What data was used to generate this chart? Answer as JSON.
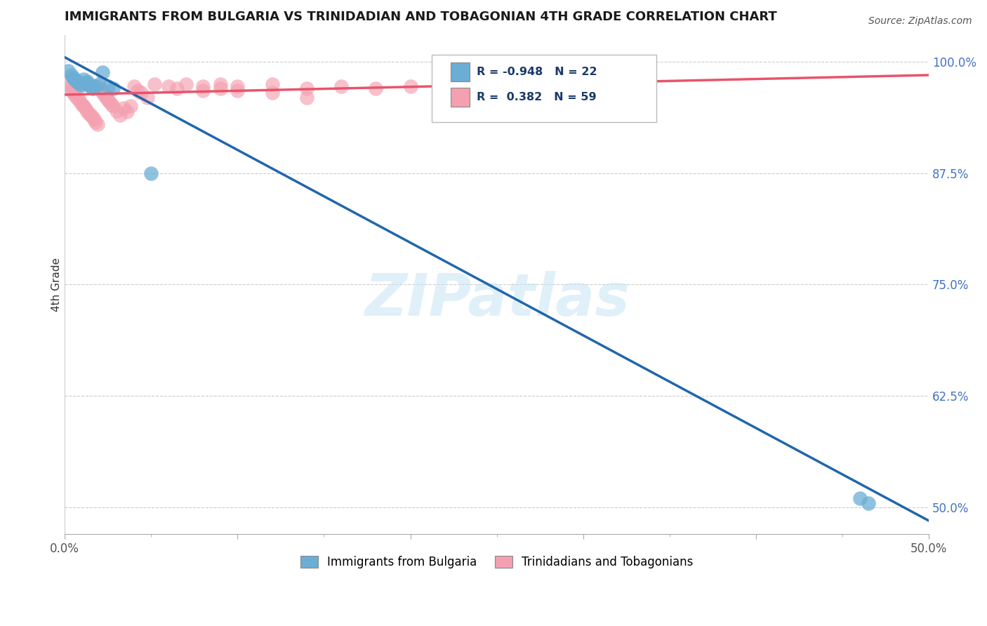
{
  "title": "IMMIGRANTS FROM BULGARIA VS TRINIDADIAN AND TOBAGONIAN 4TH GRADE CORRELATION CHART",
  "source": "Source: ZipAtlas.com",
  "ylabel": "4th Grade",
  "ytick_labels": [
    "100.0%",
    "87.5%",
    "75.0%",
    "62.5%",
    "50.0%"
  ],
  "ytick_values": [
    1.0,
    0.875,
    0.75,
    0.625,
    0.5
  ],
  "xlim": [
    0.0,
    0.5
  ],
  "ylim": [
    0.47,
    1.03
  ],
  "blue_R": -0.948,
  "blue_N": 22,
  "pink_R": 0.382,
  "pink_N": 59,
  "blue_color": "#6aaed6",
  "pink_color": "#f4a0b0",
  "blue_line_color": "#2166ac",
  "pink_line_color": "#e8546a",
  "watermark": "ZIPatlas",
  "legend_label_blue": "Immigrants from Bulgaria",
  "legend_label_pink": "Trinidadians and Tobagonians",
  "blue_line_x0": 0.0,
  "blue_line_y0": 1.005,
  "blue_line_x1": 0.5,
  "blue_line_y1": 0.485,
  "pink_line_x0": 0.0,
  "pink_line_y0": 0.963,
  "pink_line_x1": 0.5,
  "pink_line_y1": 0.985,
  "blue_scatter_x": [
    0.002,
    0.004,
    0.005,
    0.006,
    0.007,
    0.008,
    0.009,
    0.01,
    0.011,
    0.012,
    0.013,
    0.014,
    0.015,
    0.016,
    0.018,
    0.02,
    0.022,
    0.025,
    0.028,
    0.05,
    0.46,
    0.465
  ],
  "blue_scatter_y": [
    0.99,
    0.985,
    0.982,
    0.98,
    0.978,
    0.976,
    0.975,
    0.974,
    0.98,
    0.976,
    0.978,
    0.975,
    0.972,
    0.97,
    0.972,
    0.975,
    0.988,
    0.972,
    0.97,
    0.875,
    0.51,
    0.505
  ],
  "pink_scatter_x": [
    0.002,
    0.003,
    0.004,
    0.005,
    0.006,
    0.007,
    0.008,
    0.009,
    0.01,
    0.011,
    0.012,
    0.013,
    0.014,
    0.015,
    0.016,
    0.017,
    0.018,
    0.019,
    0.02,
    0.021,
    0.022,
    0.023,
    0.024,
    0.025,
    0.026,
    0.027,
    0.028,
    0.03,
    0.032,
    0.034,
    0.036,
    0.038,
    0.04,
    0.042,
    0.044,
    0.048,
    0.052,
    0.06,
    0.065,
    0.07,
    0.08,
    0.09,
    0.1,
    0.12,
    0.14,
    0.16,
    0.18,
    0.2,
    0.22,
    0.25,
    0.28,
    0.3,
    0.12,
    0.14,
    0.08,
    0.09,
    0.1,
    0.3,
    0.28
  ],
  "pink_scatter_y": [
    0.975,
    0.972,
    0.968,
    0.965,
    0.962,
    0.96,
    0.958,
    0.955,
    0.952,
    0.95,
    0.947,
    0.944,
    0.942,
    0.94,
    0.938,
    0.935,
    0.932,
    0.93,
    0.972,
    0.968,
    0.965,
    0.962,
    0.96,
    0.957,
    0.955,
    0.952,
    0.95,
    0.945,
    0.94,
    0.948,
    0.944,
    0.95,
    0.972,
    0.968,
    0.965,
    0.96,
    0.975,
    0.972,
    0.97,
    0.975,
    0.972,
    0.975,
    0.972,
    0.975,
    0.97,
    0.972,
    0.97,
    0.972,
    0.97,
    0.975,
    0.97,
    0.968,
    0.965,
    0.96,
    0.968,
    0.97,
    0.968,
    0.97,
    0.972
  ]
}
